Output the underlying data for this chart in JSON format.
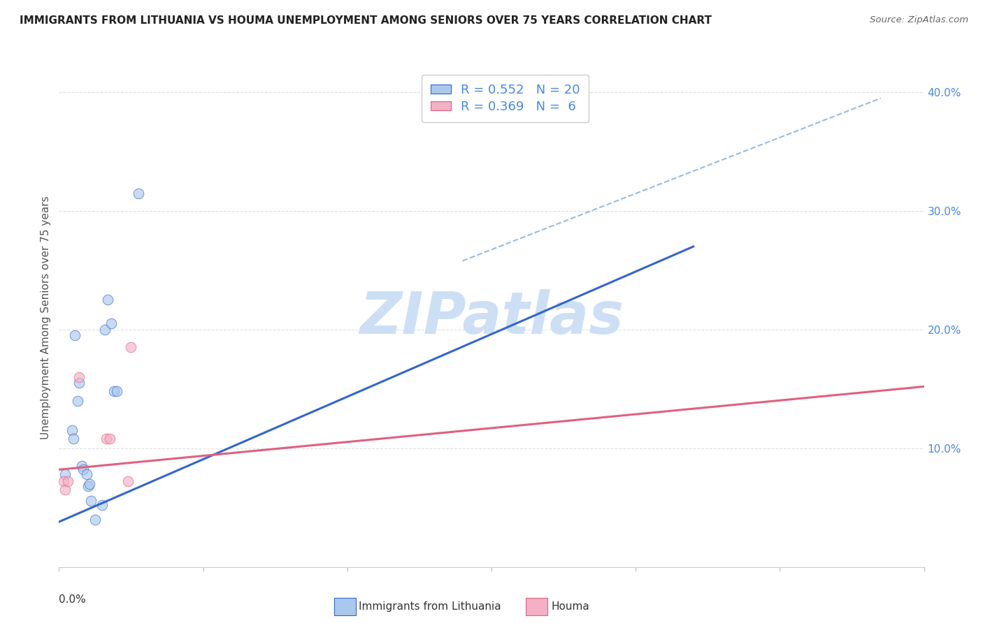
{
  "title": "IMMIGRANTS FROM LITHUANIA VS HOUMA UNEMPLOYMENT AMONG SENIORS OVER 75 YEARS CORRELATION CHART",
  "source": "Source: ZipAtlas.com",
  "ylabel": "Unemployment Among Seniors over 75 years",
  "xmin": 0.0,
  "xmax": 0.06,
  "ymin": 0.0,
  "ymax": 0.42,
  "watermark": "ZIPatlas",
  "legend_label1_blue": "Immigrants from Lithuania",
  "legend_label2_pink": "Houma",
  "blue_scatter": [
    [
      0.0004,
      0.078
    ],
    [
      0.0009,
      0.115
    ],
    [
      0.001,
      0.108
    ],
    [
      0.0011,
      0.195
    ],
    [
      0.0013,
      0.14
    ],
    [
      0.0014,
      0.155
    ],
    [
      0.0016,
      0.085
    ],
    [
      0.0017,
      0.082
    ],
    [
      0.0019,
      0.078
    ],
    [
      0.002,
      0.068
    ],
    [
      0.0021,
      0.07
    ],
    [
      0.0022,
      0.056
    ],
    [
      0.0025,
      0.04
    ],
    [
      0.003,
      0.052
    ],
    [
      0.0032,
      0.2
    ],
    [
      0.0034,
      0.225
    ],
    [
      0.0036,
      0.205
    ],
    [
      0.0038,
      0.148
    ],
    [
      0.004,
      0.148
    ],
    [
      0.0055,
      0.315
    ]
  ],
  "pink_scatter": [
    [
      0.0003,
      0.072
    ],
    [
      0.0004,
      0.065
    ],
    [
      0.0006,
      0.072
    ],
    [
      0.0014,
      0.16
    ],
    [
      0.0033,
      0.108
    ],
    [
      0.0035,
      0.108
    ],
    [
      0.005,
      0.185
    ],
    [
      0.0048,
      0.072
    ]
  ],
  "blue_line_x": [
    0.0,
    0.044
  ],
  "blue_line_y": [
    0.038,
    0.27
  ],
  "pink_line_x": [
    0.0,
    0.06
  ],
  "pink_line_y": [
    0.082,
    0.152
  ],
  "blue_dashed_line_x": [
    0.028,
    0.057
  ],
  "blue_dashed_line_y": [
    0.258,
    0.395
  ],
  "watermark_color": "#ccdff5",
  "scatter_size": 110,
  "scatter_alpha": 0.65,
  "blue_color": "#aac8ed",
  "pink_color": "#f4b0c5",
  "line_blue_color": "#3366cc",
  "line_pink_color": "#e06080",
  "dashed_color": "#99bbdd",
  "grid_color": "#e0e0e0",
  "right_tick_color": "#4488ee",
  "title_color": "#222222",
  "source_color": "#666666",
  "ylabel_color": "#555555"
}
